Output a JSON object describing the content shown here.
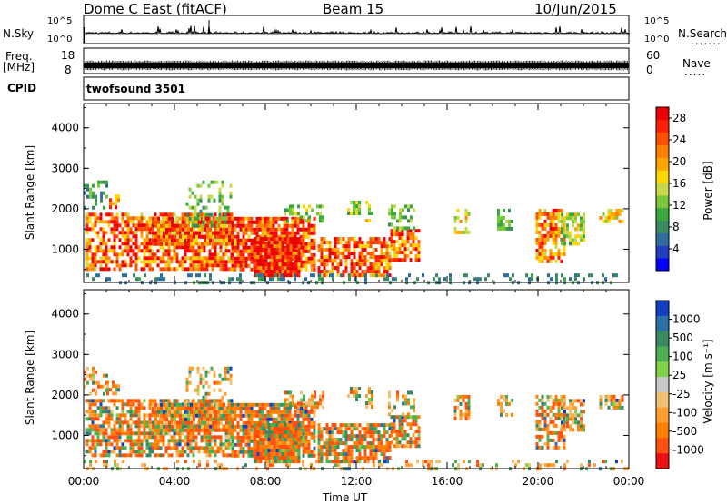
{
  "header": {
    "station": "Dome C East (fitACF)",
    "beam": "Beam 15",
    "date": "10/Jun/2015"
  },
  "side_labels": {
    "nsky": "N.Sky",
    "nsearch": "N.Search",
    "freq_line1": "Freq.",
    "freq_line2": "[MHz]",
    "nave": "Nave",
    "cpid": "CPID",
    "cpid_value": "twofsound 3501",
    "dots": "......."
  },
  "noise_axis": {
    "top": "10^5",
    "bottom": "10^0"
  },
  "freq_axis": {
    "top": "18",
    "bottom": "8",
    "right_top": "60",
    "right_bottom": "0"
  },
  "chart_data": [
    {
      "type": "heatmap",
      "name": "power",
      "ylabel": "Slant Range [km]",
      "yticks": [
        1000,
        2000,
        3000,
        4000
      ],
      "ylim": [
        180,
        4600
      ],
      "xlabel": "Time UT",
      "xticks": [
        "00:00",
        "04:00",
        "08:00",
        "12:00",
        "16:00",
        "20:00",
        "00:00"
      ],
      "xlim_hours": [
        0,
        24
      ],
      "colorbar": {
        "label": "Power [dB]",
        "ticks": [
          "4",
          "8",
          "12",
          "16",
          "20",
          "24",
          "28"
        ],
        "colors": [
          "#0000ff",
          "#1f3fbf",
          "#2e6e9e",
          "#3a8a60",
          "#3aa83a",
          "#7ac83a",
          "#c8d84a",
          "#ffd700",
          "#ffa500",
          "#ff7f00",
          "#ff5000",
          "#ff2000",
          "#ee0000"
        ]
      }
    },
    {
      "type": "heatmap",
      "name": "velocity",
      "ylabel": "Slant Range [km]",
      "yticks": [
        1000,
        2000,
        3000,
        4000
      ],
      "ylim": [
        180,
        4600
      ],
      "xlabel": "Time UT",
      "xticks": [
        "00:00",
        "04:00",
        "08:00",
        "12:00",
        "16:00",
        "20:00",
        "00:00"
      ],
      "xlim_hours": [
        0,
        24
      ],
      "colorbar": {
        "label": "Velocity [m s⁻¹]",
        "ticks": [
          "1000",
          "500",
          "100",
          "25",
          "-25",
          "-100",
          "-500",
          "-1000"
        ],
        "colors": [
          "#1040c0",
          "#2a70a8",
          "#3a8a60",
          "#4caf50",
          "#7ed348",
          "#c8c8c8",
          "#f0c070",
          "#ffa030",
          "#ff8000",
          "#ff5010",
          "#ee1010"
        ]
      }
    }
  ]
}
